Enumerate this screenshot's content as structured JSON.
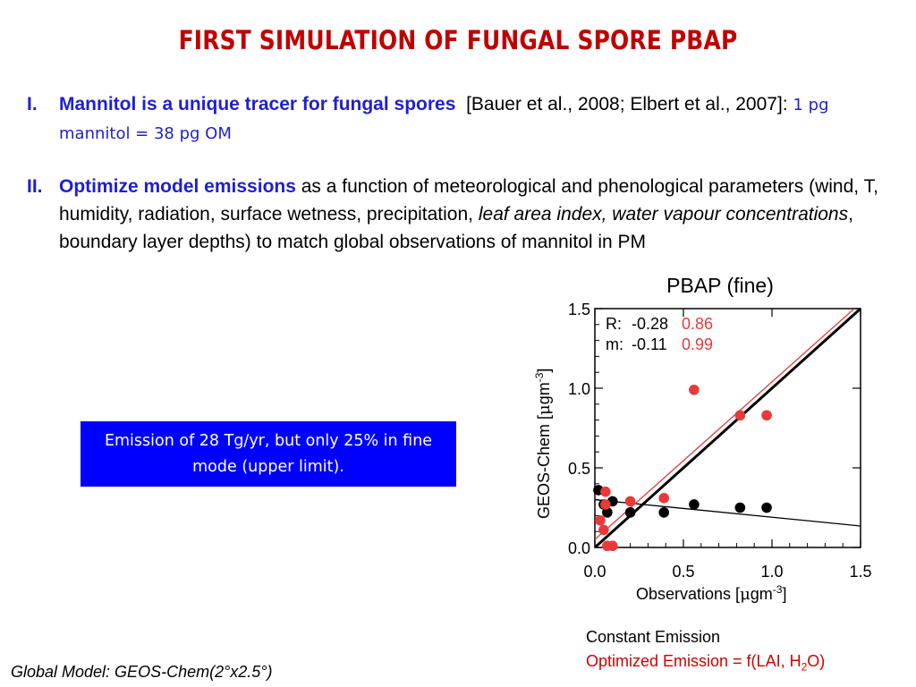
{
  "title": "FIRST SIMULATION OF FUNGAL SPORE PBAP",
  "bullets": [
    {
      "num": "I.",
      "lead": "Mannitol is a unique tracer for fungal spores",
      "text": "[Bauer et al., 2008; Elbert et al., 2007]:",
      "note": "1 pg mannitol = 38 pg OM"
    },
    {
      "num": "II.",
      "lead": "Optimize model emissions",
      "text1": "as a function of meteorological and phenological parameters (wind, T, humidity, radiation, surface wetness, precipitation,",
      "italic": "leaf area index, water vapour concentrations",
      "text2": ", boundary layer depths) to match global observations of mannitol in PM"
    }
  ],
  "callout": "Emission of 28 Tg/yr, but only 25% in fine mode (upper limit).",
  "legend": {
    "constant": "Constant Emission",
    "optimized_prefix": "Optimized Emission = f(LAI, H",
    "optimized_sub": "2",
    "optimized_suffix": "O)"
  },
  "footer": "Global Model: GEOS-Chem(2°x2.5°)",
  "colors": {
    "title": "#c00000",
    "blue": "#1f1fd0",
    "red": "#e83a3a",
    "black": "#000000"
  },
  "chart_data": {
    "type": "scatter",
    "title": "PBAP (fine)",
    "xlabel": "Observations [μgm-3]",
    "ylabel": "GEOS-Chem [μgm-3]",
    "xlim": [
      0,
      1.5
    ],
    "ylim": [
      0,
      1.5
    ],
    "xticks": [
      "0.0",
      "0.5",
      "1.0",
      "1.5"
    ],
    "yticks": [
      "0.0",
      "0.5",
      "1.0",
      "1.5"
    ],
    "stats": {
      "R_label": "R:",
      "m_label": "m:",
      "R_constant": "-0.28",
      "R_optimized": "0.86",
      "m_constant": "-0.11",
      "m_optimized": "0.99"
    },
    "series": [
      {
        "name": "Constant Emission",
        "color": "#000000",
        "points": [
          [
            0.02,
            0.36
          ],
          [
            0.05,
            0.27
          ],
          [
            0.07,
            0.22
          ],
          [
            0.1,
            0.29
          ],
          [
            0.2,
            0.22
          ],
          [
            0.39,
            0.22
          ],
          [
            0.56,
            0.27
          ],
          [
            0.82,
            0.25
          ],
          [
            0.97,
            0.25
          ]
        ],
        "fit": {
          "slope": -0.11,
          "intercept": 0.3
        }
      },
      {
        "name": "Optimized Emission = f(LAI, H2O)",
        "color": "#e83a3a",
        "points": [
          [
            0.03,
            0.17
          ],
          [
            0.05,
            0.11
          ],
          [
            0.06,
            0.27
          ],
          [
            0.06,
            0.35
          ],
          [
            0.07,
            0.01
          ],
          [
            0.1,
            0.01
          ],
          [
            0.2,
            0.29
          ],
          [
            0.39,
            0.31
          ],
          [
            0.56,
            0.99
          ],
          [
            0.82,
            0.83
          ],
          [
            0.97,
            0.83
          ]
        ],
        "fit": {
          "slope": 0.99,
          "intercept": 0.05
        }
      }
    ],
    "one_to_one": true
  }
}
